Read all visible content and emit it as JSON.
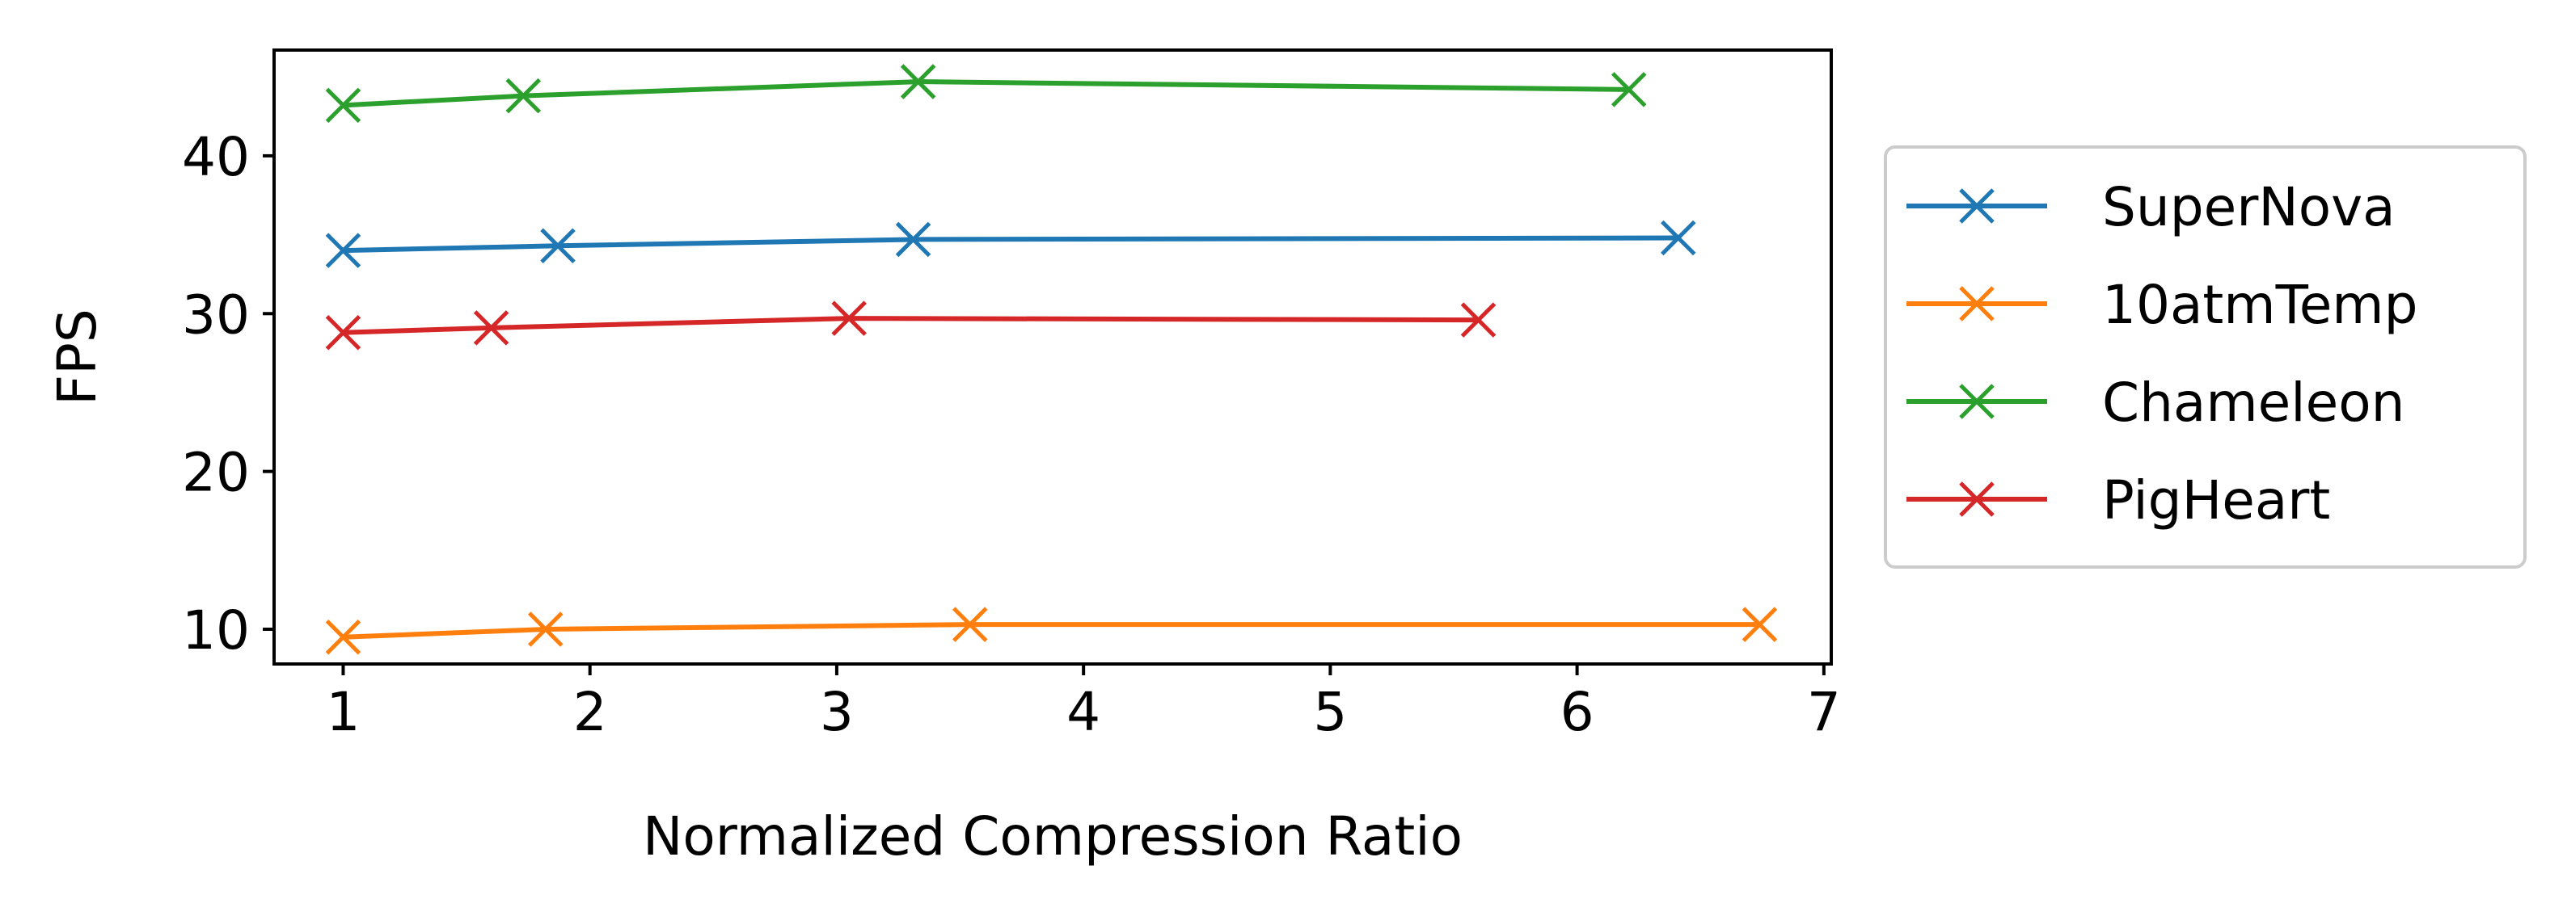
{
  "chart_data": {
    "type": "line",
    "title": "",
    "xlabel": "Normalized Compression Ratio",
    "ylabel": "FPS",
    "xlim": [
      0.72,
      7.03
    ],
    "ylim": [
      7.8,
      46.7
    ],
    "xticks": [
      1,
      2,
      3,
      4,
      5,
      6,
      7
    ],
    "yticks": [
      10,
      20,
      30,
      40
    ],
    "grid": false,
    "legend_position": "right-outside",
    "marker": "x",
    "series": [
      {
        "name": "SuperNova",
        "color": "#1f77b4",
        "x": [
          1.0,
          1.87,
          3.31,
          6.41
        ],
        "y": [
          34.0,
          34.3,
          34.7,
          34.8
        ]
      },
      {
        "name": "10atmTemp",
        "color": "#ff7f0e",
        "x": [
          1.0,
          1.82,
          3.54,
          6.74
        ],
        "y": [
          9.5,
          10.0,
          10.3,
          10.3
        ]
      },
      {
        "name": "Chameleon",
        "color": "#2ca02c",
        "x": [
          1.0,
          1.73,
          3.33,
          6.21
        ],
        "y": [
          43.2,
          43.8,
          44.7,
          44.2
        ]
      },
      {
        "name": "PigHeart",
        "color": "#d62728",
        "x": [
          1.0,
          1.6,
          3.05,
          5.6
        ],
        "y": [
          28.8,
          29.1,
          29.7,
          29.6
        ]
      }
    ]
  }
}
